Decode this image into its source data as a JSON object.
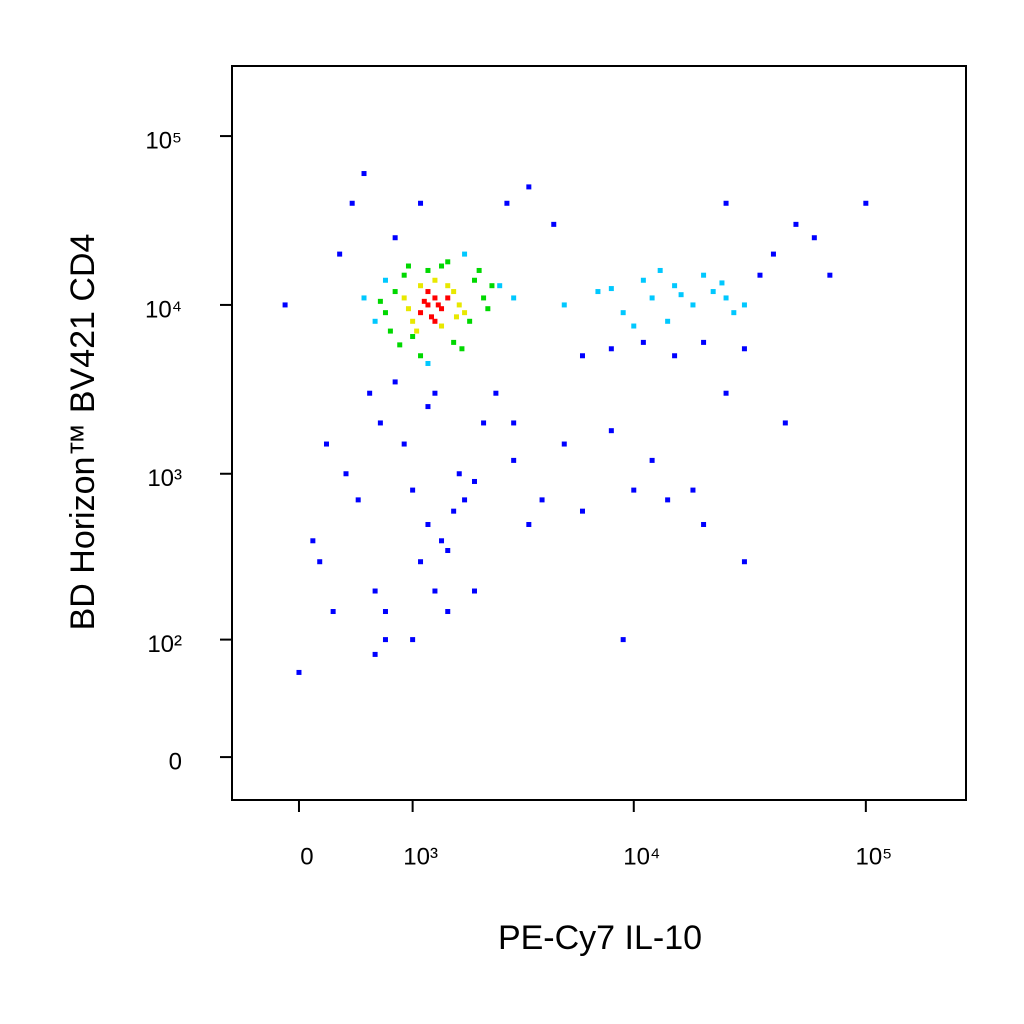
{
  "chart_data": {
    "type": "scatter",
    "x_label": "PE-Cy7  IL-10",
    "y_label": "BD Horizon™ BV421 CD4",
    "xscale": "biexponential",
    "yscale": "biexponential",
    "xlim": [
      -517,
      270000
    ],
    "ylim": [
      -26,
      260000
    ],
    "xticks": [
      0,
      {
        "value": 1000,
        "label": "10³"
      },
      {
        "value": 10000,
        "label": "10⁴"
      },
      {
        "value": 100000,
        "label": "10⁵"
      }
    ],
    "yticks": [
      0,
      {
        "value": 100,
        "label": "10²"
      },
      {
        "value": 1000,
        "label": "10³"
      },
      {
        "value": 10000,
        "label": "10⁴"
      },
      {
        "value": 100000,
        "label": "10⁵"
      }
    ],
    "series": [
      {
        "color": "#0000ff",
        "x": [
          300,
          400,
          500,
          550,
          650,
          800,
          2800,
          3500,
          4500,
          6000,
          8000,
          11000,
          15000,
          20000,
          30000,
          40000,
          50000,
          60000,
          25000,
          35000,
          1000,
          1200,
          1400,
          1600,
          1800,
          2000,
          1100,
          1300,
          1500,
          1700,
          900,
          2200,
          2500,
          3000,
          4000,
          6000,
          10000,
          14000,
          20000,
          30000,
          200,
          100,
          350,
          450,
          600,
          700,
          1000,
          1500,
          2000,
          800,
          1200,
          3000,
          5000,
          8000,
          12000,
          18000,
          25000,
          45000,
          70000,
          100000,
          -100,
          0,
          150,
          250,
          600,
          1300,
          700,
          1100,
          3500,
          9000
        ],
        "y": [
          20000,
          40000,
          60000,
          3000,
          2000,
          25000,
          40000,
          50000,
          30000,
          5000,
          5500,
          6000,
          5000,
          6000,
          5500,
          20000,
          30000,
          25000,
          40000,
          15000,
          800,
          500,
          400,
          600,
          700,
          900,
          300,
          200,
          350,
          1000,
          1500,
          2000,
          3000,
          1200,
          700,
          600,
          800,
          700,
          500,
          300,
          1500,
          400,
          1000,
          700,
          200,
          150,
          100,
          150,
          200,
          3500,
          2500,
          2000,
          1500,
          1800,
          1200,
          800,
          3000,
          2000,
          15000,
          40000,
          10000,
          60,
          300,
          150,
          80,
          3000,
          100,
          40000,
          500,
          100
        ]
      },
      {
        "color": "#00c8ff",
        "x": [
          600,
          2600,
          3000,
          700,
          1800,
          5000,
          7000,
          9000,
          12000,
          15000,
          18000,
          22000,
          25000,
          30000,
          11000,
          14000,
          20000,
          8000,
          16000,
          27000,
          10000,
          13000,
          24000,
          1200,
          500
        ],
        "y": [
          8000,
          13000,
          11000,
          14000,
          20000,
          10000,
          12000,
          9000,
          11000,
          13000,
          10000,
          12000,
          11000,
          10000,
          14000,
          8000,
          15000,
          12500,
          11500,
          9000,
          7500,
          16000,
          13500,
          4500,
          11000
        ]
      },
      {
        "color": "#00d800",
        "x": [
          700,
          800,
          2000,
          2200,
          900,
          1000,
          1900,
          2400,
          750,
          1200,
          1600,
          2100,
          850,
          1400,
          1750,
          650,
          1100,
          2300,
          1500,
          950
        ],
        "y": [
          9000,
          12000,
          14000,
          11000,
          15000,
          6500,
          8000,
          13000,
          7000,
          16000,
          6000,
          16000,
          5800,
          17000,
          5500,
          10500,
          5000,
          9500,
          18000,
          17000
        ]
      },
      {
        "color": "#e8e800",
        "x": [
          900,
          1000,
          1600,
          1700,
          1100,
          1400,
          950,
          1800,
          1300,
          1500,
          1050,
          1650
        ],
        "y": [
          11000,
          8000,
          12000,
          10000,
          13000,
          7500,
          9500,
          9000,
          14000,
          13000,
          7000,
          8500
        ]
      },
      {
        "color": "#ff0000",
        "x": [
          1100,
          1200,
          1300,
          1400,
          1250,
          1150,
          1350,
          1500,
          1200,
          1300
        ],
        "y": [
          9000,
          10000,
          11000,
          9500,
          8500,
          10500,
          10000,
          11000,
          12000,
          8000
        ]
      }
    ]
  }
}
